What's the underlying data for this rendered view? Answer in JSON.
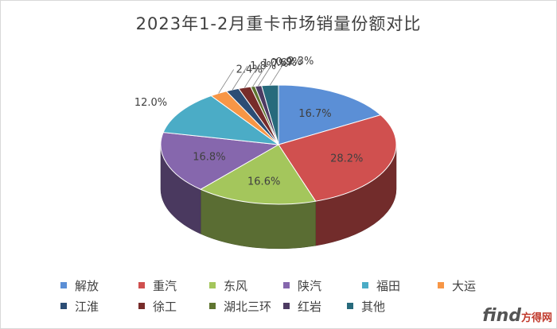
{
  "chart_data": {
    "type": "pie",
    "title": "2023年1-2月重卡市场销量份额对比",
    "start_index": 0,
    "slices": [
      {
        "name": "解放",
        "value": 16.7,
        "label": "16.7%",
        "color": "#5b8fd6"
      },
      {
        "name": "重汽",
        "value": 28.2,
        "label": "28.2%",
        "color": "#d0504f"
      },
      {
        "name": "东风",
        "value": 16.6,
        "label": "16.6%",
        "color": "#a4c65c"
      },
      {
        "name": "陕汽",
        "value": 16.8,
        "label": "16.8%",
        "color": "#8667ad"
      },
      {
        "name": "福田",
        "value": 12.0,
        "label": "12.0%",
        "color": "#4bacc6"
      },
      {
        "name": "大运",
        "value": 2.4,
        "label": "2.4%",
        "color": "#f79646"
      },
      {
        "name": "江淮",
        "value": 1.8,
        "label": "1.8%",
        "color": "#2c4d75"
      },
      {
        "name": "徐工",
        "value": 1.7,
        "label": "1.7%",
        "color": "#772c2a"
      },
      {
        "name": "湖北三环",
        "value": 0.6,
        "label": "0.6%",
        "color": "#5f7530"
      },
      {
        "name": "红岩",
        "value": 0.9,
        "label": "0.9%",
        "color": "#4d3b62"
      },
      {
        "name": "其他",
        "value": 2.3,
        "label": "2.3%",
        "color": "#276a7c"
      }
    ],
    "legend_position": "bottom"
  },
  "watermark": {
    "brand": "find",
    "cn": "方得网"
  }
}
